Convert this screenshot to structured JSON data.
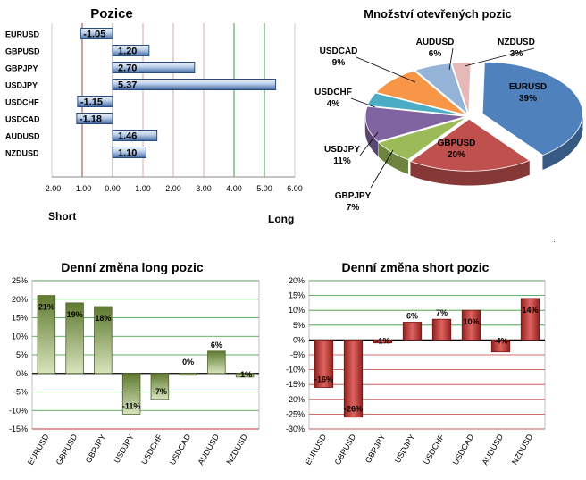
{
  "pozice": {
    "chart_data": {
      "type": "bar",
      "orientation": "horizontal",
      "title": "Pozice",
      "categories": [
        "EURUSD",
        "GBPUSD",
        "GBPJPY",
        "USDJPY",
        "USDCHF",
        "USDCAD",
        "AUDUSD",
        "NZDUSD"
      ],
      "values": [
        -1.05,
        1.2,
        2.7,
        5.37,
        -1.15,
        -1.18,
        1.46,
        1.1
      ],
      "value_labels": [
        "-1.05",
        "1.20",
        "2.70",
        "5.37",
        "-1.15",
        "-1.18",
        "1.46",
        "1.10"
      ],
      "xlim": [
        -2,
        6
      ],
      "ticks": [
        "-2.00",
        "-1.00",
        "0.00",
        "1.00",
        "2.00",
        "3.00",
        "4.00",
        "5.00",
        "6.00"
      ],
      "short_label": "Short",
      "long_label": "Long"
    }
  },
  "pie": {
    "chart_data": {
      "type": "pie",
      "title": "Množství otevřených pozic",
      "labels": [
        "EURUSD",
        "GBPUSD",
        "GBPJPY",
        "USDJPY",
        "USDCHF",
        "USDCAD",
        "AUDUSD",
        "NZDUSD"
      ],
      "values": [
        39,
        20,
        7,
        11,
        4,
        9,
        6,
        3
      ],
      "percent_labels": [
        "39%",
        "20%",
        "7%",
        "11%",
        "4%",
        "9%",
        "6%",
        "3%"
      ],
      "colors": [
        "#4f81bd",
        "#c0504d",
        "#9bbb59",
        "#8064a2",
        "#4bacc6",
        "#f79646",
        "#95b3d7",
        "#e6b9b8"
      ]
    }
  },
  "long": {
    "chart_data": {
      "type": "bar",
      "title": "Denní změna long pozic",
      "categories": [
        "EURUSD",
        "GBPUSD",
        "GBPJPY",
        "USDJPY",
        "USDCHF",
        "USDCAD",
        "AUDUSD",
        "NZDUSD"
      ],
      "values": [
        21,
        19,
        18,
        -11,
        -7,
        0,
        6,
        -1
      ],
      "value_labels": [
        "21%",
        "19%",
        "18%",
        "-11%",
        "-7%",
        "0%",
        "6%",
        "-1%"
      ],
      "ylim": [
        -15,
        25
      ],
      "ticks": [
        "-15%",
        "-10%",
        "-5%",
        "0%",
        "5%",
        "10%",
        "15%",
        "20%",
        "25%"
      ],
      "colors": {
        "bar": "#76933c",
        "grid": "#339933",
        "baseline": "#000000"
      }
    }
  },
  "short": {
    "chart_data": {
      "type": "bar",
      "title": "Denní změna short pozic",
      "categories": [
        "EURUSD",
        "GBPUSD",
        "GBPJPY",
        "USDJPY",
        "USDCHF",
        "USDCAD",
        "AUDUSD",
        "NZDUSD"
      ],
      "values": [
        -16,
        -26,
        -1,
        6,
        7,
        10,
        -4,
        14
      ],
      "value_labels": [
        "-16%",
        "-26%",
        "-1%",
        "6%",
        "7%",
        "10%",
        "-4%",
        "14%"
      ],
      "ylim": [
        -30,
        20
      ],
      "ticks": [
        "-30%",
        "-25%",
        "-20%",
        "-15%",
        "-10%",
        "-5%",
        "0%",
        "5%",
        "10%",
        "15%",
        "20%"
      ],
      "colors": {
        "bar": "#c0504d",
        "grid_pos": "#339933",
        "grid_neg": "#c00000",
        "baseline": "#000000"
      }
    }
  }
}
